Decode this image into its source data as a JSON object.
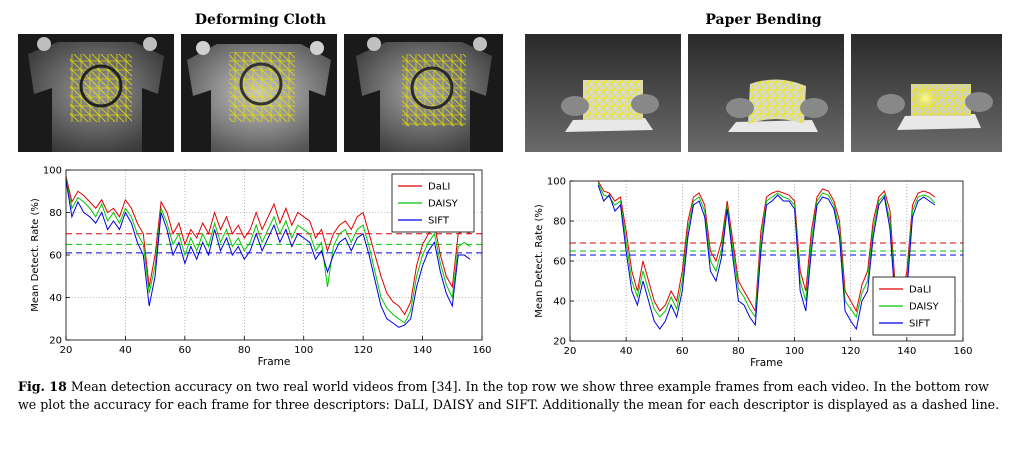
{
  "panels": [
    {
      "title": "Deforming Cloth",
      "scene": "cloth"
    },
    {
      "title": "Paper Bending",
      "scene": "paper"
    }
  ],
  "caption": {
    "label": "Fig. 18",
    "text": "Mean detection accuracy on two real world videos from [34]. In the top row we show three example frames from each video. In the bottom row we plot the accuracy for each frame for three descriptors: DaLI, DAISY and SIFT. Additionally the mean for each descriptor is displayed as a dashed line."
  },
  "chart_data": [
    {
      "type": "line",
      "title": "Deforming Cloth",
      "xlabel": "Frame",
      "ylabel": "Mean Detect. Rate (%)",
      "xlim": [
        20,
        160
      ],
      "ylim": [
        20,
        100
      ],
      "xticks": [
        20,
        40,
        60,
        80,
        100,
        120,
        140,
        160
      ],
      "yticks": [
        20,
        40,
        60,
        80,
        100
      ],
      "grid": true,
      "legend": "top-right",
      "x": [
        20,
        22,
        24,
        26,
        28,
        30,
        32,
        34,
        36,
        38,
        40,
        42,
        44,
        46,
        48,
        50,
        52,
        54,
        56,
        58,
        60,
        62,
        64,
        66,
        68,
        70,
        72,
        74,
        76,
        78,
        80,
        82,
        84,
        86,
        88,
        90,
        92,
        94,
        96,
        98,
        100,
        102,
        104,
        106,
        108,
        110,
        112,
        114,
        116,
        118,
        120,
        122,
        124,
        126,
        128,
        130,
        132,
        134,
        136,
        138,
        140,
        142,
        144,
        146,
        148,
        150,
        152,
        154,
        156
      ],
      "series": [
        {
          "name": "DaLI",
          "color": "#e00000",
          "mean": 70,
          "values": [
            97,
            85,
            90,
            88,
            85,
            82,
            86,
            80,
            82,
            78,
            86,
            82,
            75,
            70,
            45,
            60,
            85,
            80,
            70,
            75,
            65,
            72,
            68,
            75,
            70,
            80,
            72,
            78,
            70,
            74,
            68,
            72,
            80,
            72,
            78,
            84,
            75,
            82,
            74,
            80,
            78,
            76,
            68,
            72,
            62,
            70,
            74,
            76,
            72,
            78,
            80,
            70,
            60,
            50,
            42,
            38,
            36,
            32,
            38,
            55,
            65,
            70,
            74,
            60,
            50,
            45,
            70,
            72,
            70
          ]
        },
        {
          "name": "DAISY",
          "color": "#00c800",
          "mean": 65,
          "values": [
            96,
            82,
            87,
            85,
            82,
            78,
            84,
            76,
            80,
            75,
            82,
            78,
            70,
            65,
            42,
            55,
            82,
            75,
            65,
            70,
            60,
            68,
            62,
            70,
            64,
            75,
            66,
            72,
            64,
            68,
            62,
            66,
            74,
            66,
            72,
            78,
            70,
            76,
            68,
            74,
            72,
            70,
            62,
            66,
            45,
            64,
            70,
            72,
            66,
            72,
            74,
            64,
            52,
            40,
            35,
            32,
            30,
            28,
            34,
            50,
            60,
            66,
            70,
            56,
            46,
            40,
            64,
            66,
            64
          ]
        },
        {
          "name": "SIFT",
          "color": "#0000e0",
          "mean": 61,
          "values": [
            95,
            78,
            85,
            80,
            78,
            75,
            80,
            72,
            76,
            72,
            80,
            75,
            66,
            60,
            36,
            50,
            80,
            72,
            60,
            66,
            56,
            64,
            58,
            66,
            60,
            72,
            62,
            68,
            60,
            64,
            58,
            62,
            70,
            62,
            68,
            74,
            66,
            72,
            64,
            70,
            68,
            66,
            58,
            62,
            52,
            60,
            66,
            68,
            62,
            68,
            70,
            60,
            48,
            36,
            30,
            28,
            26,
            27,
            30,
            45,
            55,
            62,
            66,
            52,
            42,
            36,
            60,
            60,
            58
          ]
        }
      ]
    },
    {
      "type": "line",
      "title": "Paper Bending",
      "xlabel": "Frame",
      "ylabel": "Mean Detect. Rate (%)",
      "xlim": [
        20,
        160
      ],
      "ylim": [
        20,
        100
      ],
      "xticks": [
        20,
        40,
        60,
        80,
        100,
        120,
        140,
        160
      ],
      "yticks": [
        20,
        40,
        60,
        80,
        100
      ],
      "grid": true,
      "legend": "bottom-right",
      "x": [
        30,
        32,
        34,
        36,
        38,
        40,
        42,
        44,
        46,
        48,
        50,
        52,
        54,
        56,
        58,
        60,
        62,
        64,
        66,
        68,
        70,
        72,
        74,
        76,
        78,
        80,
        82,
        84,
        86,
        88,
        90,
        92,
        94,
        96,
        98,
        100,
        102,
        104,
        106,
        108,
        110,
        112,
        114,
        116,
        118,
        120,
        122,
        124,
        126,
        128,
        130,
        132,
        134,
        136,
        138,
        140,
        142,
        144,
        146,
        148,
        150
      ],
      "series": [
        {
          "name": "DaLI",
          "color": "#e00000",
          "mean": 69,
          "values": [
            100,
            95,
            94,
            90,
            92,
            75,
            55,
            45,
            60,
            50,
            40,
            35,
            38,
            45,
            40,
            55,
            80,
            92,
            94,
            88,
            65,
            60,
            70,
            90,
            70,
            50,
            45,
            40,
            35,
            75,
            92,
            94,
            95,
            94,
            93,
            90,
            55,
            45,
            75,
            92,
            96,
            95,
            90,
            80,
            45,
            40,
            35,
            48,
            55,
            80,
            92,
            95,
            85,
            45,
            40,
            55,
            88,
            94,
            95,
            94,
            92
          ]
        },
        {
          "name": "DAISY",
          "color": "#00c800",
          "mean": 65,
          "values": [
            99,
            93,
            92,
            88,
            90,
            70,
            50,
            42,
            55,
            45,
            36,
            32,
            35,
            42,
            36,
            50,
            76,
            90,
            92,
            85,
            60,
            55,
            66,
            88,
            66,
            46,
            42,
            36,
            32,
            70,
            90,
            92,
            94,
            92,
            91,
            88,
            50,
            40,
            70,
            90,
            94,
            93,
            88,
            76,
            40,
            36,
            32,
            44,
            50,
            76,
            90,
            93,
            80,
            40,
            36,
            50,
            85,
            92,
            93,
            92,
            89
          ]
        },
        {
          "name": "SIFT",
          "color": "#0000e0",
          "mean": 63,
          "values": [
            98,
            90,
            93,
            85,
            88,
            65,
            45,
            38,
            50,
            40,
            30,
            26,
            30,
            38,
            32,
            45,
            72,
            88,
            90,
            82,
            55,
            50,
            62,
            86,
            62,
            40,
            38,
            32,
            28,
            65,
            88,
            90,
            93,
            90,
            90,
            86,
            45,
            35,
            65,
            88,
            92,
            91,
            86,
            72,
            35,
            30,
            26,
            40,
            45,
            72,
            88,
            92,
            76,
            36,
            30,
            45,
            82,
            90,
            92,
            90,
            88
          ]
        }
      ]
    }
  ]
}
